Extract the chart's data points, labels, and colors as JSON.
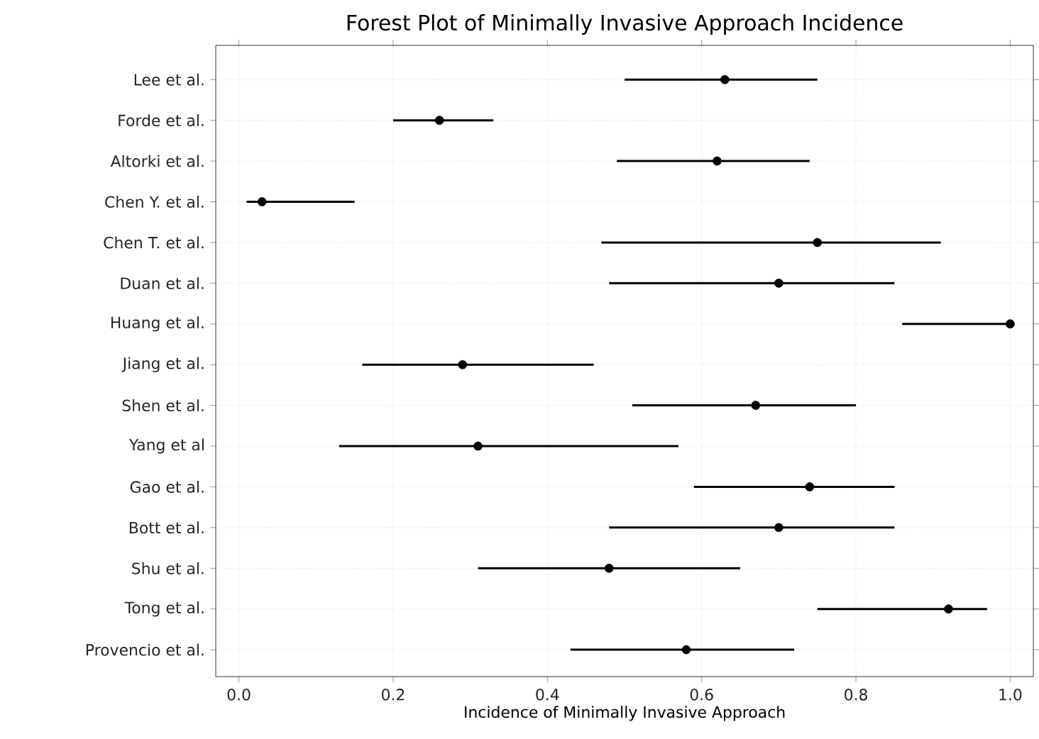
{
  "chart_data": {
    "type": "scatter",
    "orientation": "horizontal",
    "title": "Forest Plot of Minimally Invasive Approach Incidence",
    "xlabel": "Incidence of Minimally Invasive Approach",
    "categories": [
      "Lee et al.",
      "Forde et al.",
      "Altorki et al.",
      "Chen Y. et al.",
      "Chen T. et al.",
      "Duan et al.",
      "Huang et al.",
      "Jiang et al.",
      "Shen et al.",
      "Yang et al",
      "Gao et al.",
      "Bott et al.",
      "Shu et al.",
      "Tong et al.",
      "Provencio et al."
    ],
    "values": [
      0.63,
      0.26,
      0.62,
      0.03,
      0.75,
      0.7,
      1.0,
      0.29,
      0.67,
      0.31,
      0.74,
      0.7,
      0.48,
      0.92,
      0.58
    ],
    "errors": [
      [
        0.5,
        0.75
      ],
      [
        0.2,
        0.33
      ],
      [
        0.49,
        0.74
      ],
      [
        0.01,
        0.15
      ],
      [
        0.47,
        0.91
      ],
      [
        0.48,
        0.85
      ],
      [
        0.86,
        1.0
      ],
      [
        0.16,
        0.46
      ],
      [
        0.51,
        0.8
      ],
      [
        0.13,
        0.57
      ],
      [
        0.59,
        0.85
      ],
      [
        0.48,
        0.85
      ],
      [
        0.31,
        0.65
      ],
      [
        0.75,
        0.97
      ],
      [
        0.43,
        0.72
      ]
    ],
    "color": "#000000",
    "marker": "circle",
    "grid": true,
    "xlim": [
      -0.03,
      1.03
    ],
    "xticks": [
      {
        "value": 0,
        "label": "0.0"
      },
      {
        "value": 0.2,
        "label": "0.2"
      },
      {
        "value": 0.4,
        "label": "0.4"
      },
      {
        "value": 0.6,
        "label": "0.6"
      },
      {
        "value": 0.8,
        "label": "0.8"
      },
      {
        "value": 1.0,
        "label": "1.0"
      }
    ]
  }
}
